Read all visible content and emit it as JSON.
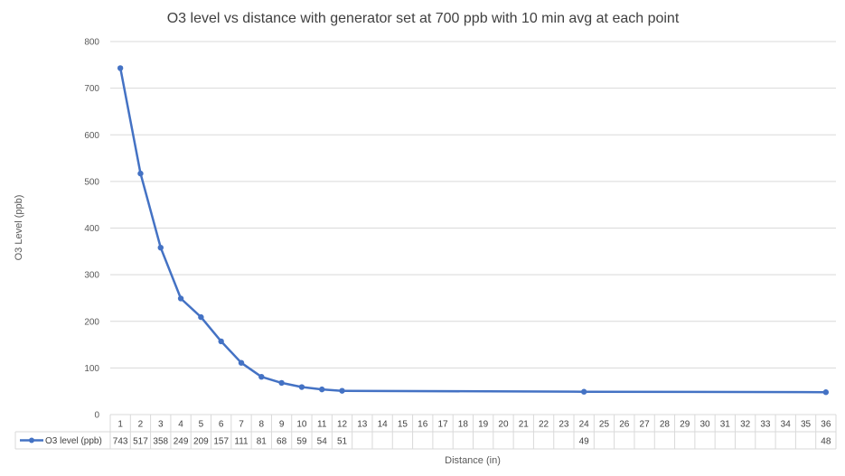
{
  "chart_data": {
    "type": "line",
    "title": "O3 level vs distance with generator set at 700 ppb with 10 min avg at each point",
    "xlabel": "Distance (in)",
    "ylabel": "O3 Level (ppb)",
    "ylim": [
      0,
      800
    ],
    "y_ticks": [
      "0",
      "100",
      "200",
      "300",
      "400",
      "500",
      "600",
      "700",
      "800"
    ],
    "grid": true,
    "legend": "data-table",
    "categories": [
      "1",
      "2",
      "3",
      "4",
      "5",
      "6",
      "7",
      "8",
      "9",
      "10",
      "11",
      "12",
      "13",
      "14",
      "15",
      "16",
      "17",
      "18",
      "19",
      "20",
      "21",
      "22",
      "23",
      "24",
      "25",
      "26",
      "27",
      "28",
      "29",
      "30",
      "31",
      "32",
      "33",
      "34",
      "35",
      "36"
    ],
    "series": [
      {
        "name": "O3 level (ppb)",
        "color": "#4472C4",
        "values": [
          743,
          517,
          358,
          249,
          209,
          157,
          111,
          81,
          68,
          59,
          54,
          51,
          null,
          null,
          null,
          null,
          null,
          null,
          null,
          null,
          null,
          null,
          null,
          49,
          null,
          null,
          null,
          null,
          null,
          null,
          null,
          null,
          null,
          null,
          null,
          48
        ]
      }
    ]
  }
}
